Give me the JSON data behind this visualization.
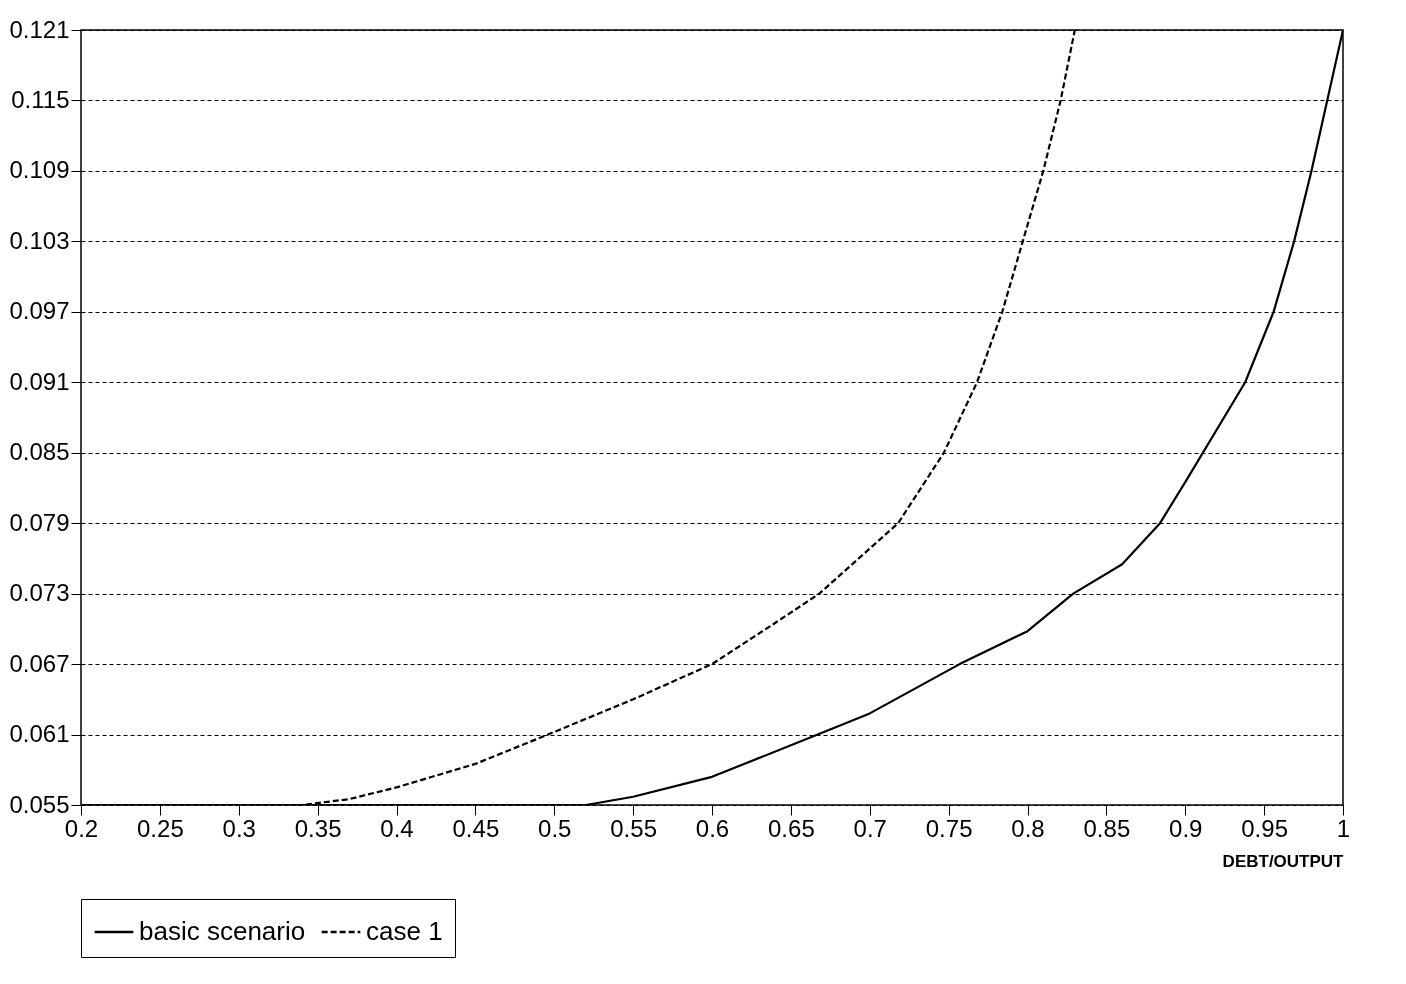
{
  "chart_data": {
    "type": "line",
    "xlabel": "DEBT/OUTPUT",
    "xlim": [
      0.2,
      1
    ],
    "ylim": [
      0.055,
      0.121
    ],
    "xticks": [
      0.2,
      0.25,
      0.3,
      0.35,
      0.4,
      0.45,
      0.5,
      0.55,
      0.6,
      0.65,
      0.7,
      0.75,
      0.8,
      0.85,
      0.9,
      0.95,
      1
    ],
    "yticks": [
      0.055,
      0.061,
      0.067,
      0.073,
      0.079,
      0.085,
      0.091,
      0.097,
      0.103,
      0.109,
      0.115,
      0.121
    ],
    "grid": "y",
    "legend": "bottom",
    "series": [
      {
        "name": "basic scenario",
        "color": "#000000",
        "line_style": "solid",
        "x": [
          0.2,
          0.3,
          0.4,
          0.5,
          0.52,
          0.55,
          0.6,
          0.667,
          0.7,
          0.757,
          0.8,
          0.829,
          0.86,
          0.884,
          0.9,
          0.938,
          0.956,
          0.969,
          0.98,
          0.99,
          1.0
        ],
        "values": [
          0.055,
          0.055,
          0.055,
          0.055,
          0.055,
          0.0557,
          0.0574,
          0.061,
          0.0628,
          0.067,
          0.0698,
          0.073,
          0.0755,
          0.079,
          0.0825,
          0.091,
          0.097,
          0.103,
          0.109,
          0.115,
          0.121
        ]
      },
      {
        "name": "case 1",
        "color": "#000000",
        "line_style": "dashed",
        "x": [
          0.2,
          0.3,
          0.34,
          0.37,
          0.4,
          0.45,
          0.496,
          0.55,
          0.6,
          0.64,
          0.668,
          0.718,
          0.747,
          0.768,
          0.784,
          0.797,
          0.81,
          0.821,
          0.83
        ],
        "values": [
          0.055,
          0.055,
          0.055,
          0.0555,
          0.0565,
          0.0585,
          0.061,
          0.064,
          0.067,
          0.0705,
          0.073,
          0.079,
          0.085,
          0.091,
          0.097,
          0.103,
          0.109,
          0.115,
          0.121
        ]
      }
    ]
  }
}
